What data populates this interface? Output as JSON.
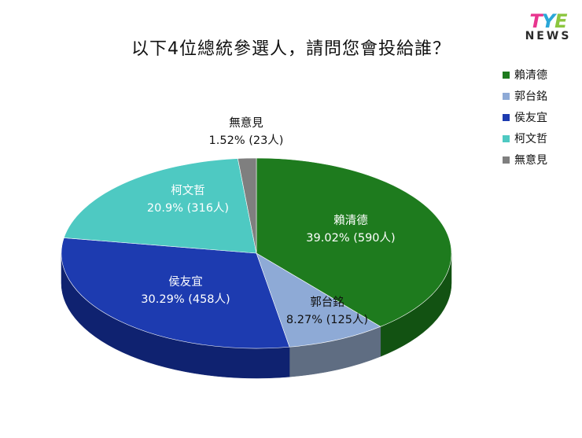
{
  "logo": {
    "line1_a": "T",
    "line1_b": "Y",
    "line1_c": "E",
    "line2": "NEWS"
  },
  "chart_data": {
    "type": "pie",
    "title": "以下4位總統參選人，請問您會投給誰？",
    "legend_position": "right",
    "slices": [
      {
        "name": "賴清德",
        "percent_label": "39.02% (590人)",
        "value": 590,
        "percent": 39.02,
        "color": "#1e7b1e",
        "dark": "#125212",
        "label_color": "#ffffff"
      },
      {
        "name": "郭台銘",
        "percent_label": "8.27% (125人)",
        "value": 125,
        "percent": 8.27,
        "color": "#8eaad6",
        "dark": "#5f6d82",
        "label_color": "#111111"
      },
      {
        "name": "侯友宜",
        "percent_label": "30.29% (458人)",
        "value": 458,
        "percent": 30.29,
        "color": "#1d3bb0",
        "dark": "#0f2270",
        "label_color": "#ffffff"
      },
      {
        "name": "柯文哲",
        "percent_label": "20.9% (316人)",
        "value": 316,
        "percent": 20.9,
        "color": "#4ec9c2",
        "dark": "#2c8c88",
        "label_color": "#ffffff"
      },
      {
        "name": "無意見",
        "percent_label": "1.52% (23人)",
        "value": 23,
        "percent": 1.52,
        "color": "#7f7f7f",
        "dark": "#555555",
        "label_color": "#111111"
      }
    ]
  }
}
